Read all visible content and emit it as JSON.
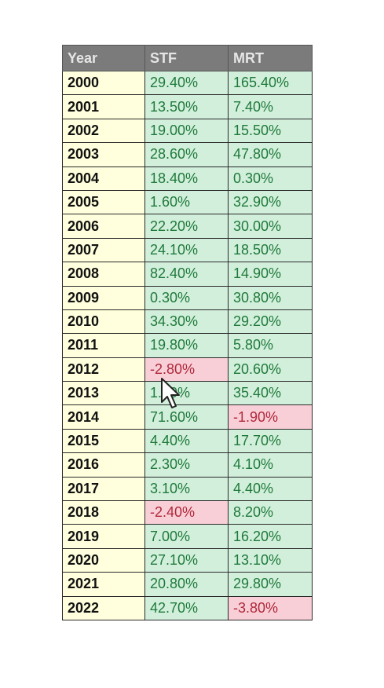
{
  "headers": [
    "Year",
    "STF",
    "MRT"
  ],
  "rows": [
    {
      "year": "2000",
      "stf": "29.40%",
      "mrt": "165.40%"
    },
    {
      "year": "2001",
      "stf": "13.50%",
      "mrt": "7.40%"
    },
    {
      "year": "2002",
      "stf": "19.00%",
      "mrt": "15.50%"
    },
    {
      "year": "2003",
      "stf": "28.60%",
      "mrt": "47.80%"
    },
    {
      "year": "2004",
      "stf": "18.40%",
      "mrt": "0.30%"
    },
    {
      "year": "2005",
      "stf": "1.60%",
      "mrt": "32.90%"
    },
    {
      "year": "2006",
      "stf": "22.20%",
      "mrt": "30.00%"
    },
    {
      "year": "2007",
      "stf": "24.10%",
      "mrt": "18.50%"
    },
    {
      "year": "2008",
      "stf": "82.40%",
      "mrt": "14.90%"
    },
    {
      "year": "2009",
      "stf": "0.30%",
      "mrt": "30.80%"
    },
    {
      "year": "2010",
      "stf": "34.30%",
      "mrt": "29.20%"
    },
    {
      "year": "2011",
      "stf": "19.80%",
      "mrt": "5.80%"
    },
    {
      "year": "2012",
      "stf": "-2.80%",
      "mrt": "20.60%"
    },
    {
      "year": "2013",
      "stf": "1.20%",
      "mrt": "35.40%"
    },
    {
      "year": "2014",
      "stf": "71.60%",
      "mrt": "-1.90%"
    },
    {
      "year": "2015",
      "stf": "4.40%",
      "mrt": "17.70%"
    },
    {
      "year": "2016",
      "stf": "2.30%",
      "mrt": "4.10%"
    },
    {
      "year": "2017",
      "stf": "3.10%",
      "mrt": "4.40%"
    },
    {
      "year": "2018",
      "stf": "-2.40%",
      "mrt": "8.20%"
    },
    {
      "year": "2019",
      "stf": "7.00%",
      "mrt": "16.20%"
    },
    {
      "year": "2020",
      "stf": "27.10%",
      "mrt": "13.10%"
    },
    {
      "year": "2021",
      "stf": "20.80%",
      "mrt": "29.80%"
    },
    {
      "year": "2022",
      "stf": "42.70%",
      "mrt": "-3.80%"
    }
  ],
  "colors": {
    "header_bg": "#7b7b7b",
    "header_text": "#e6e6e6",
    "year_bg": "#ffffdd",
    "positive_bg": "#d2efdc",
    "positive_text": "#1f7a3a",
    "negative_bg": "#f8cfd6",
    "negative_text": "#b0283c"
  },
  "cursor_icon": "mouse-pointer-icon"
}
